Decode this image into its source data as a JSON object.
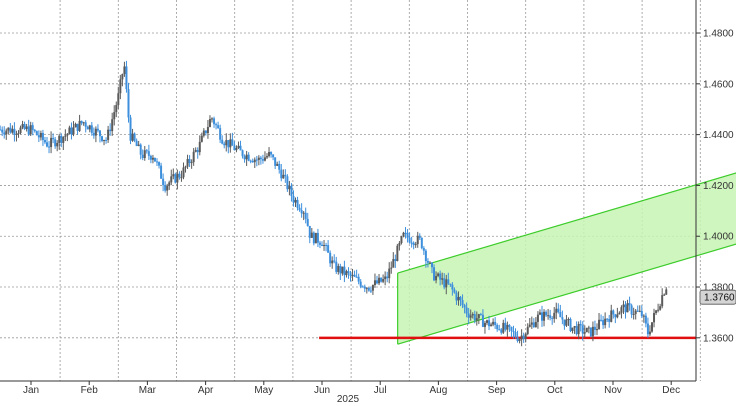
{
  "chart_data": {
    "type": "candlestick",
    "x_label": "2025",
    "y_ticks": [
      "1.4800",
      "1.4600",
      "1.4400",
      "1.4200",
      "1.4000",
      "1.3800",
      "1.3600"
    ],
    "y_tick_values": [
      1.48,
      1.46,
      1.44,
      1.42,
      1.4,
      1.38,
      1.36
    ],
    "ylim": [
      1.343,
      1.493
    ],
    "months": [
      "Jan",
      "Feb",
      "Mar",
      "Apr",
      "May",
      "Jun",
      "Jul",
      "Aug",
      "Sep",
      "Oct",
      "Nov",
      "Dec"
    ],
    "last_value": "1.3760",
    "grid": true,
    "colors": {
      "up": "#5a5a5a",
      "down": "#3d8fdc",
      "channel_fill": "#c8f5b4",
      "channel_stroke": "#3ccc2a",
      "support": "#e01010",
      "grid": "#9a9a9a",
      "label_box": "#d4d4d4"
    },
    "support_level": 1.36,
    "channel": {
      "start_month": 6.3,
      "end_month": 12.5,
      "lower_start": 1.3575,
      "lower_end": 1.3995,
      "upper_start": 1.3855,
      "upper_end": 1.4275
    },
    "price_path": [
      [
        0.0,
        1.442
      ],
      [
        0.3,
        1.436
      ],
      [
        0.6,
        1.44
      ],
      [
        0.9,
        1.445
      ],
      [
        1.3,
        1.438
      ],
      [
        1.5,
        1.455
      ],
      [
        1.6,
        1.468
      ],
      [
        1.7,
        1.44
      ],
      [
        1.9,
        1.432
      ],
      [
        2.1,
        1.432
      ],
      [
        2.3,
        1.42
      ],
      [
        2.6,
        1.425
      ],
      [
        2.9,
        1.436
      ],
      [
        3.1,
        1.447
      ],
      [
        3.3,
        1.438
      ],
      [
        3.6,
        1.433
      ],
      [
        3.9,
        1.43
      ],
      [
        4.1,
        1.432
      ],
      [
        4.3,
        1.425
      ],
      [
        4.5,
        1.415
      ],
      [
        4.7,
        1.41
      ],
      [
        4.8,
        1.4
      ],
      [
        5.0,
        1.398
      ],
      [
        5.2,
        1.388
      ],
      [
        5.5,
        1.384
      ],
      [
        5.8,
        1.38
      ],
      [
        6.1,
        1.383
      ],
      [
        6.4,
        1.4
      ],
      [
        6.7,
        1.398
      ],
      [
        6.9,
        1.385
      ],
      [
        7.2,
        1.38
      ],
      [
        7.5,
        1.37
      ],
      [
        7.8,
        1.366
      ],
      [
        8.1,
        1.364
      ],
      [
        8.4,
        1.36
      ],
      [
        8.7,
        1.368
      ],
      [
        9.0,
        1.37
      ],
      [
        9.3,
        1.364
      ],
      [
        9.6,
        1.362
      ],
      [
        9.9,
        1.368
      ],
      [
        10.2,
        1.372
      ],
      [
        10.5,
        1.369
      ],
      [
        10.6,
        1.362
      ],
      [
        10.9,
        1.38
      ],
      [
        11.1,
        1.386
      ],
      [
        11.4,
        1.378
      ],
      [
        11.6,
        1.376
      ],
      [
        11.9,
        1.384
      ],
      [
        12.2,
        1.39
      ],
      [
        12.5,
        1.382
      ],
      [
        12.8,
        1.376
      ],
      [
        13.1,
        1.384
      ],
      [
        13.4,
        1.387
      ],
      [
        13.7,
        1.38
      ],
      [
        14.0,
        1.376
      ],
      [
        14.3,
        1.383
      ],
      [
        14.6,
        1.394
      ],
      [
        14.9,
        1.396
      ],
      [
        15.2,
        1.404
      ],
      [
        15.5,
        1.406
      ],
      [
        15.8,
        1.403
      ],
      [
        16.1,
        1.4
      ],
      [
        16.4,
        1.396
      ],
      [
        16.7,
        1.41
      ],
      [
        17.0,
        1.413
      ],
      [
        17.2,
        1.406
      ],
      [
        17.5,
        1.403
      ],
      [
        17.8,
        1.403
      ],
      [
        18.1,
        1.411
      ],
      [
        18.3,
        1.406
      ],
      [
        18.6,
        1.398
      ],
      [
        18.8,
        1.39
      ],
      [
        18.9,
        1.383
      ],
      [
        19.1,
        1.38
      ],
      [
        19.3,
        1.376
      ]
    ]
  }
}
